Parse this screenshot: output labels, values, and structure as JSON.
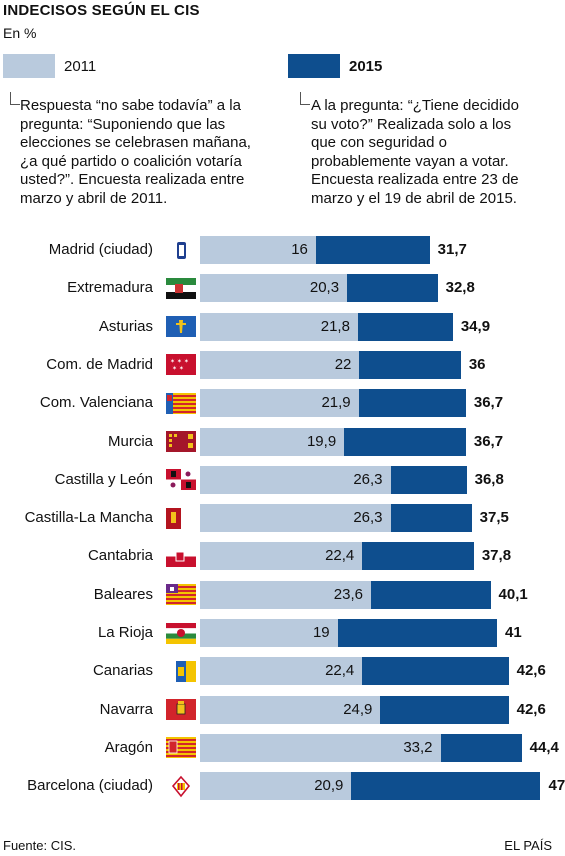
{
  "header": {
    "title": "INDECISOS SEGÚN EL CIS",
    "subtitle": "En %"
  },
  "legend": {
    "a_label": "2011",
    "b_label": "2015",
    "a_note": [
      "Respuesta “no sabe todavía” a la",
      "pregunta: “Suponiendo que las",
      "elecciones se celebrasen mañana,",
      "¿a qué partido o coalición votaría",
      "usted?”. Encuesta realizada entre",
      "marzo y abril de 2011."
    ],
    "b_note": [
      "A la pregunta: “¿Tiene decidido",
      "su voto?” Realizada solo a los",
      "que con seguridad o",
      "probablemente vayan a votar.",
      "Encuesta realizada entre 23 de",
      "marzo y el 19  de abril de 2015."
    ]
  },
  "colors": {
    "a": "#b9cadd",
    "b": "#0e4e8e"
  },
  "chart_data": {
    "type": "bar",
    "orientation": "horizontal",
    "categories": [
      "Madrid (ciudad)",
      "Extremadura",
      "Asturias",
      "Com. de Madrid",
      "Com. Valenciana",
      "Murcia",
      "Castilla y León",
      "Castilla-La Mancha",
      "Cantabria",
      "Baleares",
      "La Rioja",
      "Canarias",
      "Navarra",
      "Aragón",
      "Barcelona (ciudad)"
    ],
    "series": [
      {
        "name": "2011",
        "values": [
          16,
          20.3,
          21.8,
          22,
          21.9,
          19.9,
          26.3,
          26.3,
          22.4,
          23.6,
          19,
          22.4,
          24.9,
          33.2,
          20.9
        ],
        "labels": [
          "16",
          "20,3",
          "21,8",
          "22",
          "21,9",
          "19,9",
          "26,3",
          "26,3",
          "22,4",
          "23,6",
          "19",
          "22,4",
          "24,9",
          "33,2",
          "20,9"
        ]
      },
      {
        "name": "2015",
        "values": [
          31.7,
          32.8,
          34.9,
          36,
          36.7,
          36.7,
          36.8,
          37.5,
          37.8,
          40.1,
          41,
          42.6,
          42.6,
          44.4,
          47
        ],
        "labels": [
          "31,7",
          "32,8",
          "34,9",
          "36",
          "36,7",
          "36,7",
          "36,8",
          "37,5",
          "37,8",
          "40,1",
          "41",
          "42,6",
          "42,6",
          "44,4",
          "47"
        ]
      }
    ],
    "flags": [
      "madrid-city-flag-icon",
      "extremadura-flag-icon",
      "asturias-flag-icon",
      "com-madrid-flag-icon",
      "valencia-flag-icon",
      "murcia-flag-icon",
      "castilla-leon-flag-icon",
      "castilla-la-mancha-flag-icon",
      "cantabria-flag-icon",
      "baleares-flag-icon",
      "la-rioja-flag-icon",
      "canarias-flag-icon",
      "navarra-flag-icon",
      "aragon-flag-icon",
      "barcelona-city-flag-icon"
    ]
  },
  "footer": {
    "source": "Fuente: CIS.",
    "credit": "EL PAÍS"
  }
}
